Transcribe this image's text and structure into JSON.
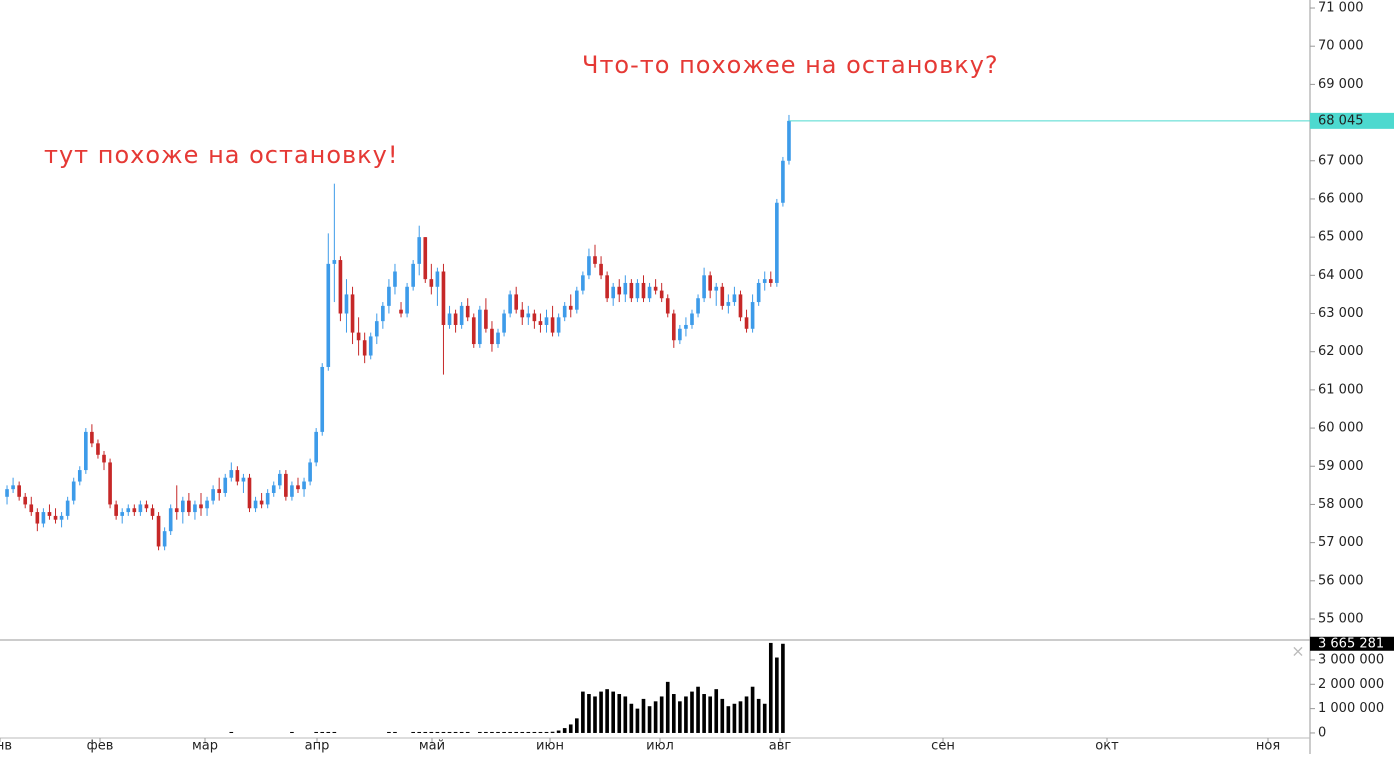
{
  "chart_data": {
    "type": "candlestick",
    "annotations": [
      "Что-то похожее на остановку?",
      "тут похоже на остановку!"
    ],
    "x_labels": [
      "янв",
      "фев",
      "мар",
      "апр",
      "май",
      "июн",
      "июл",
      "авг",
      "сен",
      "окт",
      "ноя"
    ],
    "up_color": "#3d9be9",
    "down_color": "#c62828",
    "volume_color": "#000000",
    "last_price_color": "#4dd9cf",
    "ylim": [
      54450,
      71210
    ],
    "yticks": [
      {
        "value": 55000,
        "label": "55 000"
      },
      {
        "value": 56000,
        "label": "56 000"
      },
      {
        "value": 57000,
        "label": "57 000"
      },
      {
        "value": 58000,
        "label": "58 000"
      },
      {
        "value": 59000,
        "label": "59 000"
      },
      {
        "value": 60000,
        "label": "60 000"
      },
      {
        "value": 61000,
        "label": "61 000"
      },
      {
        "value": 62000,
        "label": "62 000"
      },
      {
        "value": 63000,
        "label": "63 000"
      },
      {
        "value": 64000,
        "label": "64 000"
      },
      {
        "value": 65000,
        "label": "65 000"
      },
      {
        "value": 66000,
        "label": "66 000"
      },
      {
        "value": 67000,
        "label": "67 000"
      },
      {
        "value": 68000,
        "label": "68 000"
      },
      {
        "value": 69000,
        "label": "69 000"
      },
      {
        "value": 70000,
        "label": "70 000"
      },
      {
        "value": 71000,
        "label": "71 000"
      }
    ],
    "last_price": {
      "value": 68045,
      "label": "68 045"
    },
    "volume_ylim": [
      -700000,
      3820000
    ],
    "volume_yticks": [
      0,
      {
        "value": 1000000,
        "label": "1 000 000"
      },
      {
        "value": 2000000,
        "label": "2 000 000"
      },
      {
        "value": 3000000,
        "label": "3 000 000"
      }
    ],
    "last_volume": {
      "value": 3665281,
      "label": "3 665 281"
    },
    "candles": [
      [
        58200,
        58500,
        58000,
        58400
      ],
      [
        58400,
        58700,
        58300,
        58500
      ],
      [
        58500,
        58600,
        58100,
        58200
      ],
      [
        58200,
        58300,
        57900,
        58000
      ],
      [
        58000,
        58200,
        57700,
        57800
      ],
      [
        57800,
        57900,
        57300,
        57500
      ],
      [
        57500,
        57900,
        57400,
        57800
      ],
      [
        57800,
        58000,
        57600,
        57700
      ],
      [
        57700,
        57900,
        57500,
        57600
      ],
      [
        57600,
        57800,
        57400,
        57700
      ],
      [
        57700,
        58200,
        57600,
        58100
      ],
      [
        58100,
        58700,
        58000,
        58600
      ],
      [
        58600,
        59000,
        58500,
        58900
      ],
      [
        58900,
        60000,
        58800,
        59900
      ],
      [
        59900,
        60100,
        59500,
        59600
      ],
      [
        59600,
        59700,
        59200,
        59300
      ],
      [
        59300,
        59400,
        58900,
        59100
      ],
      [
        59100,
        59200,
        57900,
        58000
      ],
      [
        58000,
        58100,
        57600,
        57700
      ],
      [
        57700,
        57900,
        57500,
        57800
      ],
      [
        57800,
        58000,
        57700,
        57900
      ],
      [
        57900,
        58000,
        57700,
        57800
      ],
      [
        57800,
        58100,
        57700,
        58000
      ],
      [
        58000,
        58100,
        57800,
        57900
      ],
      [
        57900,
        58000,
        57600,
        57700
      ],
      [
        57700,
        57800,
        56800,
        56900
      ],
      [
        56900,
        57400,
        56800,
        57300
      ],
      [
        57300,
        58000,
        57200,
        57900
      ],
      [
        57900,
        58500,
        57600,
        57800
      ],
      [
        57800,
        58200,
        57500,
        58100
      ],
      [
        58100,
        58300,
        57700,
        57800
      ],
      [
        57800,
        58100,
        57600,
        58000
      ],
      [
        58000,
        58300,
        57700,
        57900
      ],
      [
        57900,
        58200,
        57700,
        58100
      ],
      [
        58100,
        58500,
        58000,
        58400
      ],
      [
        58400,
        58700,
        58100,
        58300
      ],
      [
        58300,
        58800,
        58200,
        58700
      ],
      [
        58700,
        59100,
        58600,
        58900
      ],
      [
        58900,
        59000,
        58500,
        58600
      ],
      [
        58600,
        58800,
        58300,
        58700
      ],
      [
        58700,
        58800,
        57800,
        57900
      ],
      [
        57900,
        58200,
        57800,
        58100
      ],
      [
        58100,
        58300,
        57900,
        58000
      ],
      [
        58000,
        58400,
        57900,
        58300
      ],
      [
        58300,
        58600,
        58200,
        58500
      ],
      [
        58500,
        58900,
        58400,
        58800
      ],
      [
        58800,
        58900,
        58100,
        58200
      ],
      [
        58200,
        58600,
        58100,
        58500
      ],
      [
        58500,
        58700,
        58300,
        58400
      ],
      [
        58400,
        58700,
        58200,
        58600
      ],
      [
        58600,
        59200,
        58500,
        59100
      ],
      [
        59100,
        60000,
        59000,
        59900
      ],
      [
        59900,
        61700,
        59800,
        61600
      ],
      [
        61600,
        65100,
        61500,
        64300
      ],
      [
        64300,
        66400,
        63300,
        64400
      ],
      [
        64400,
        64500,
        62800,
        63000
      ],
      [
        63000,
        63900,
        62500,
        63500
      ],
      [
        63500,
        63700,
        62200,
        62500
      ],
      [
        62500,
        62900,
        61900,
        62300
      ],
      [
        62300,
        62500,
        61700,
        61900
      ],
      [
        61900,
        62500,
        61800,
        62400
      ],
      [
        62400,
        63000,
        62200,
        62800
      ],
      [
        62800,
        63300,
        62600,
        63200
      ],
      [
        63200,
        63900,
        63000,
        63700
      ],
      [
        63700,
        64300,
        63500,
        64100
      ],
      [
        63100,
        63300,
        62900,
        63000
      ],
      [
        63000,
        63800,
        62900,
        63700
      ],
      [
        63700,
        64400,
        63600,
        64300
      ],
      [
        64300,
        65300,
        64000,
        65000
      ],
      [
        65000,
        65000,
        63800,
        63900
      ],
      [
        63900,
        64300,
        63500,
        63700
      ],
      [
        63700,
        64200,
        63200,
        64100
      ],
      [
        64100,
        64300,
        61400,
        62700
      ],
      [
        62700,
        63200,
        62600,
        63000
      ],
      [
        63000,
        63100,
        62500,
        62700
      ],
      [
        62700,
        63300,
        62600,
        63200
      ],
      [
        63200,
        63400,
        62800,
        62900
      ],
      [
        62900,
        63000,
        62100,
        62200
      ],
      [
        62200,
        63200,
        62100,
        63100
      ],
      [
        63100,
        63400,
        62500,
        62600
      ],
      [
        62600,
        62800,
        62000,
        62200
      ],
      [
        62200,
        62600,
        62100,
        62500
      ],
      [
        62500,
        63100,
        62400,
        63000
      ],
      [
        63000,
        63600,
        62900,
        63500
      ],
      [
        63500,
        63700,
        63000,
        63100
      ],
      [
        63100,
        63300,
        62700,
        62900
      ],
      [
        62900,
        63200,
        62700,
        63000
      ],
      [
        63000,
        63100,
        62600,
        62800
      ],
      [
        62800,
        63000,
        62500,
        62700
      ],
      [
        62700,
        63100,
        62500,
        62900
      ],
      [
        62900,
        63200,
        62400,
        62500
      ],
      [
        62500,
        63000,
        62400,
        62900
      ],
      [
        62900,
        63300,
        62800,
        63200
      ],
      [
        63200,
        63500,
        62900,
        63100
      ],
      [
        63100,
        63700,
        63000,
        63600
      ],
      [
        63600,
        64100,
        63500,
        64000
      ],
      [
        64000,
        64700,
        63900,
        64500
      ],
      [
        64500,
        64800,
        64200,
        64300
      ],
      [
        64300,
        64500,
        63900,
        64000
      ],
      [
        64000,
        64100,
        63300,
        63400
      ],
      [
        63400,
        63800,
        63200,
        63700
      ],
      [
        63700,
        63900,
        63300,
        63500
      ],
      [
        63500,
        64000,
        63300,
        63800
      ],
      [
        63800,
        63900,
        63300,
        63400
      ],
      [
        63400,
        63900,
        63300,
        63800
      ],
      [
        63800,
        64000,
        63300,
        63400
      ],
      [
        63400,
        63800,
        63300,
        63700
      ],
      [
        63700,
        63900,
        63500,
        63600
      ],
      [
        63600,
        63800,
        63300,
        63400
      ],
      [
        63400,
        63500,
        62900,
        63000
      ],
      [
        63000,
        63100,
        62100,
        62300
      ],
      [
        62300,
        62700,
        62200,
        62600
      ],
      [
        62600,
        62900,
        62400,
        62700
      ],
      [
        62700,
        63100,
        62600,
        63000
      ],
      [
        63000,
        63500,
        62900,
        63400
      ],
      [
        63400,
        64200,
        63300,
        64000
      ],
      [
        64000,
        64100,
        63400,
        63600
      ],
      [
        63600,
        63800,
        63200,
        63700
      ],
      [
        63700,
        63800,
        63100,
        63200
      ],
      [
        63200,
        63500,
        63000,
        63300
      ],
      [
        63300,
        63700,
        63200,
        63500
      ],
      [
        63500,
        63600,
        62800,
        62900
      ],
      [
        62900,
        63100,
        62500,
        62600
      ],
      [
        62600,
        63500,
        62500,
        63300
      ],
      [
        63300,
        63900,
        63200,
        63800
      ],
      [
        63800,
        64100,
        63600,
        63900
      ],
      [
        63900,
        64100,
        63700,
        63800
      ],
      [
        63800,
        66000,
        63700,
        65900
      ],
      [
        65900,
        67100,
        65800,
        67000
      ],
      [
        67000,
        68200,
        66900,
        68045
      ]
    ],
    "volume": [
      0,
      0,
      0,
      0,
      0,
      0,
      0,
      0,
      0,
      0,
      0,
      0,
      0,
      0,
      0,
      0,
      0,
      0,
      0,
      0,
      0,
      0,
      0,
      0,
      0,
      0,
      0,
      0,
      0,
      0,
      0,
      0,
      0,
      0,
      0,
      0,
      0,
      20000,
      0,
      0,
      0,
      0,
      0,
      0,
      0,
      0,
      0,
      20000,
      0,
      0,
      0,
      20000,
      20000,
      20000,
      20000,
      0,
      0,
      0,
      0,
      0,
      0,
      0,
      0,
      20000,
      20000,
      0,
      0,
      20000,
      20000,
      20000,
      20000,
      20000,
      20000,
      20000,
      20000,
      20000,
      20000,
      0,
      20000,
      20000,
      20000,
      20000,
      20000,
      20000,
      20000,
      20000,
      20000,
      20000,
      20000,
      30000,
      50000,
      100000,
      200000,
      350000,
      600000,
      1700000,
      1600000,
      1500000,
      1700000,
      1800000,
      1700000,
      1600000,
      1500000,
      1200000,
      1000000,
      1400000,
      1100000,
      1300000,
      1500000,
      2100000,
      1600000,
      1300000,
      1500000,
      1700000,
      1900000,
      1600000,
      1500000,
      1800000,
      1400000,
      1100000,
      1200000,
      1300000,
      1500000,
      1900000,
      1400000,
      1200000,
      3700000,
      3100000,
      3665281
    ]
  }
}
